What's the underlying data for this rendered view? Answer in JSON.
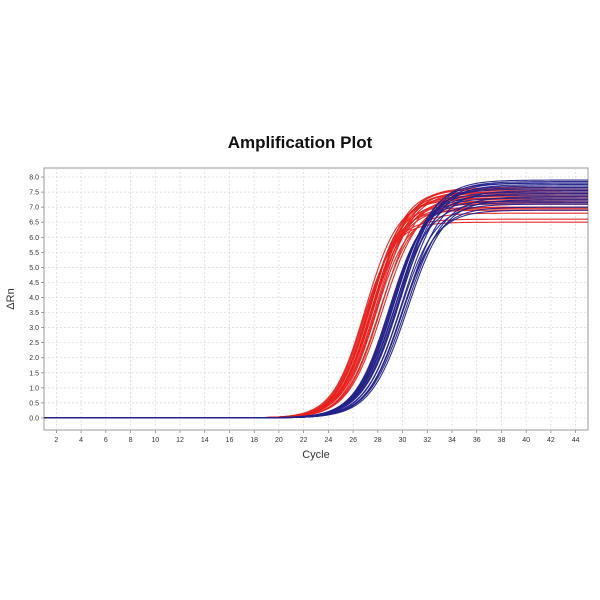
{
  "chart_data": {
    "type": "line",
    "title": "Amplification Plot",
    "xlabel": "Cycle",
    "ylabel": "ΔRn",
    "xlim": [
      1,
      45
    ],
    "ylim": [
      -0.4,
      8.3
    ],
    "x_ticks": [
      2,
      4,
      6,
      8,
      10,
      12,
      14,
      16,
      18,
      20,
      22,
      24,
      26,
      28,
      30,
      32,
      34,
      36,
      38,
      40,
      42,
      44
    ],
    "y_ticks": [
      0.0,
      0.5,
      1.0,
      1.5,
      2.0,
      2.5,
      3.0,
      3.5,
      4.0,
      4.5,
      5.0,
      5.5,
      6.0,
      6.5,
      7.0,
      7.5,
      8.0
    ],
    "grid": true,
    "legend": "none",
    "curve_model": "sigmoid",
    "x": [
      1,
      2,
      3,
      4,
      5,
      6,
      7,
      8,
      9,
      10,
      11,
      12,
      13,
      14,
      15,
      16,
      17,
      18,
      19,
      20,
      21,
      22,
      23,
      24,
      25,
      26,
      27,
      28,
      29,
      30,
      31,
      32,
      33,
      34,
      35,
      36,
      37,
      38,
      39,
      40,
      41,
      42,
      43,
      44,
      45
    ],
    "series": [
      {
        "color": "#e8221e",
        "plateau": 7.5,
        "midpoint": 27.6,
        "slope": 1.35
      },
      {
        "color": "#e8221e",
        "plateau": 7.45,
        "midpoint": 27.4,
        "slope": 1.35
      },
      {
        "color": "#e8221e",
        "plateau": 7.6,
        "midpoint": 27.7,
        "slope": 1.38
      },
      {
        "color": "#e8221e",
        "plateau": 7.3,
        "midpoint": 27.3,
        "slope": 1.3
      },
      {
        "color": "#e8221e",
        "plateau": 7.2,
        "midpoint": 27.5,
        "slope": 1.35
      },
      {
        "color": "#e8221e",
        "plateau": 7.65,
        "midpoint": 27.8,
        "slope": 1.38
      },
      {
        "color": "#e8221e",
        "plateau": 7.1,
        "midpoint": 27.2,
        "slope": 1.3
      },
      {
        "color": "#e8221e",
        "plateau": 7.4,
        "midpoint": 27.6,
        "slope": 1.35
      },
      {
        "color": "#e8221e",
        "plateau": 6.9,
        "midpoint": 27.1,
        "slope": 1.28
      },
      {
        "color": "#e8221e",
        "plateau": 7.0,
        "midpoint": 27.4,
        "slope": 1.3
      },
      {
        "color": "#e8221e",
        "plateau": 6.6,
        "midpoint": 26.9,
        "slope": 1.25
      },
      {
        "color": "#e8221e",
        "plateau": 6.5,
        "midpoint": 26.8,
        "slope": 1.25
      },
      {
        "color": "#e8221e",
        "plateau": 7.55,
        "midpoint": 27.9,
        "slope": 1.4
      },
      {
        "color": "#e8221e",
        "plateau": 7.35,
        "midpoint": 27.3,
        "slope": 1.33
      },
      {
        "color": "#e8221e",
        "plateau": 7.25,
        "midpoint": 27.0,
        "slope": 1.32
      },
      {
        "color": "#e8221e",
        "plateau": 7.15,
        "midpoint": 27.6,
        "slope": 1.36
      },
      {
        "color": "#e8221e",
        "plateau": 7.4,
        "midpoint": 28.3,
        "slope": 1.4
      },
      {
        "color": "#e8221e",
        "plateau": 7.0,
        "midpoint": 28.1,
        "slope": 1.38
      },
      {
        "color": "#e8221e",
        "plateau": 7.2,
        "midpoint": 28.4,
        "slope": 1.42
      },
      {
        "color": "#e8221e",
        "plateau": 6.8,
        "midpoint": 27.8,
        "slope": 1.3
      },
      {
        "color": "#e8221e",
        "plateau": 7.5,
        "midpoint": 28.0,
        "slope": 1.4
      },
      {
        "color": "#e8221e",
        "plateau": 7.6,
        "midpoint": 27.5,
        "slope": 1.37
      },
      {
        "color": "#e8221e",
        "plateau": 6.95,
        "midpoint": 27.5,
        "slope": 1.33
      },
      {
        "color": "#e8221e",
        "plateau": 7.3,
        "midpoint": 27.9,
        "slope": 1.38
      },
      {
        "color": "#22228a",
        "plateau": 7.9,
        "midpoint": 29.6,
        "slope": 1.5
      },
      {
        "color": "#22228a",
        "plateau": 7.8,
        "midpoint": 29.4,
        "slope": 1.48
      },
      {
        "color": "#22228a",
        "plateau": 7.7,
        "midpoint": 29.5,
        "slope": 1.5
      },
      {
        "color": "#22228a",
        "plateau": 7.6,
        "midpoint": 29.3,
        "slope": 1.45
      },
      {
        "color": "#22228a",
        "plateau": 7.5,
        "midpoint": 29.2,
        "slope": 1.45
      },
      {
        "color": "#22228a",
        "plateau": 7.85,
        "midpoint": 29.7,
        "slope": 1.5
      },
      {
        "color": "#22228a",
        "plateau": 7.4,
        "midpoint": 29.1,
        "slope": 1.43
      },
      {
        "color": "#22228a",
        "plateau": 7.3,
        "midpoint": 29.0,
        "slope": 1.42
      },
      {
        "color": "#22228a",
        "plateau": 7.65,
        "midpoint": 29.5,
        "slope": 1.47
      },
      {
        "color": "#22228a",
        "plateau": 7.2,
        "midpoint": 28.9,
        "slope": 1.4
      },
      {
        "color": "#22228a",
        "plateau": 7.55,
        "midpoint": 30.2,
        "slope": 1.5
      },
      {
        "color": "#22228a",
        "plateau": 7.75,
        "midpoint": 30.0,
        "slope": 1.5
      },
      {
        "color": "#22228a",
        "plateau": 7.1,
        "midpoint": 29.8,
        "slope": 1.45
      },
      {
        "color": "#22228a",
        "plateau": 7.35,
        "midpoint": 30.3,
        "slope": 1.52
      },
      {
        "color": "#22228a",
        "plateau": 7.0,
        "midpoint": 30.0,
        "slope": 1.45
      },
      {
        "color": "#22228a",
        "plateau": 6.9,
        "midpoint": 29.9,
        "slope": 1.42
      },
      {
        "color": "#22228a",
        "plateau": 7.15,
        "midpoint": 29.3,
        "slope": 1.44
      },
      {
        "color": "#22228a",
        "plateau": 7.8,
        "midpoint": 29.8,
        "slope": 1.5
      },
      {
        "color": "#22228a",
        "plateau": 7.25,
        "midpoint": 30.4,
        "slope": 1.5
      },
      {
        "color": "#22228a",
        "plateau": 7.45,
        "midpoint": 29.6,
        "slope": 1.47
      }
    ]
  }
}
